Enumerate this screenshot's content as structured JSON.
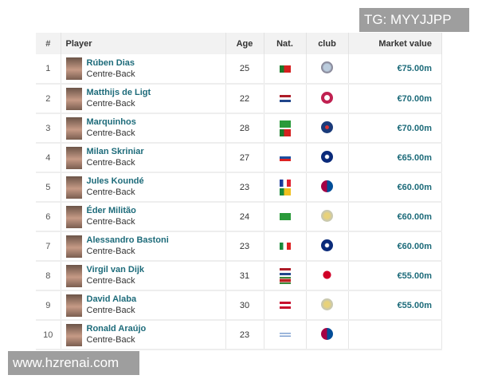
{
  "watermarks": {
    "top": "TG: MYYJJPP",
    "bottom": "www.hzrenai.com"
  },
  "table": {
    "headers": {
      "num": "#",
      "player": "Player",
      "age": "Age",
      "nat": "Nat.",
      "club": "club",
      "value": "Market value"
    },
    "rows": [
      {
        "num": "1",
        "name": "Rúben Dias",
        "position": "Centre-Back",
        "age": "25",
        "flags": [
          "portugal"
        ],
        "club": "manchester-city",
        "value": "€75.00m"
      },
      {
        "num": "2",
        "name": "Matthijs de Ligt",
        "position": "Centre-Back",
        "age": "22",
        "flags": [
          "netherlands"
        ],
        "club": "bayern-munich",
        "value": "€70.00m"
      },
      {
        "num": "3",
        "name": "Marquinhos",
        "position": "Centre-Back",
        "age": "28",
        "flags": [
          "brazil",
          "portugal"
        ],
        "club": "paris-saint-germain",
        "value": "€70.00m"
      },
      {
        "num": "4",
        "name": "Milan Skriniar",
        "position": "Centre-Back",
        "age": "27",
        "flags": [
          "slovakia"
        ],
        "club": "inter-milan",
        "value": "€65.00m"
      },
      {
        "num": "5",
        "name": "Jules Koundé",
        "position": "Centre-Back",
        "age": "23",
        "flags": [
          "france",
          "benin"
        ],
        "club": "fc-barcelona",
        "value": "€60.00m"
      },
      {
        "num": "6",
        "name": "Éder Militão",
        "position": "Centre-Back",
        "age": "24",
        "flags": [
          "brazil"
        ],
        "club": "real-madrid",
        "value": "€60.00m"
      },
      {
        "num": "7",
        "name": "Alessandro Bastoni",
        "position": "Centre-Back",
        "age": "23",
        "flags": [
          "italy"
        ],
        "club": "inter-milan",
        "value": "€60.00m"
      },
      {
        "num": "8",
        "name": "Virgil van Dijk",
        "position": "Centre-Back",
        "age": "31",
        "flags": [
          "netherlands",
          "suriname"
        ],
        "club": "liverpool",
        "value": "€55.00m"
      },
      {
        "num": "9",
        "name": "David Alaba",
        "position": "Centre-Back",
        "age": "30",
        "flags": [
          "austria"
        ],
        "club": "real-madrid",
        "value": "€55.00m"
      },
      {
        "num": "10",
        "name": "Ronald Araújo",
        "position": "Centre-Back",
        "age": "23",
        "flags": [
          "uruguay"
        ],
        "club": "fc-barcelona",
        "value": ""
      }
    ]
  },
  "colors": {
    "link": "#1d6b7a",
    "header_bg": "#f2f2f2"
  }
}
